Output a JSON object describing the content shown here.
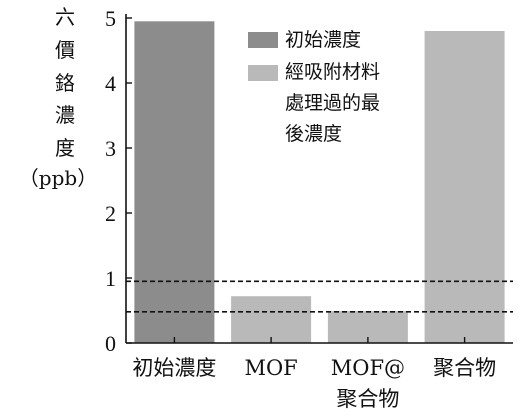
{
  "chart_data": {
    "type": "bar",
    "title": "",
    "ylabel_lines": [
      "六",
      "價",
      "鉻",
      "濃",
      "度",
      "（ppb）"
    ],
    "xlabel": "",
    "categories": [
      {
        "lines": [
          "初始濃度"
        ]
      },
      {
        "lines": [
          "MOF"
        ]
      },
      {
        "lines": [
          "MOF@",
          "聚合物"
        ]
      },
      {
        "lines": [
          "聚合物"
        ]
      }
    ],
    "series": [
      {
        "name": "初始濃度",
        "color": "#8c8c8c",
        "values": [
          4.95,
          null,
          null,
          null
        ]
      },
      {
        "name": "經吸附材料處理過的最後濃度",
        "name_lines": [
          "經吸附材料",
          "處理過的最",
          "後濃度"
        ],
        "color": "#b9b9b9",
        "values": [
          null,
          0.72,
          0.49,
          4.8
        ]
      }
    ],
    "yticks": [
      0,
      1,
      2,
      3,
      4,
      5
    ],
    "ylim": [
      0,
      5
    ],
    "reference_lines": [
      0.95,
      0.48
    ],
    "grid": false,
    "legend_position": "top-center"
  }
}
